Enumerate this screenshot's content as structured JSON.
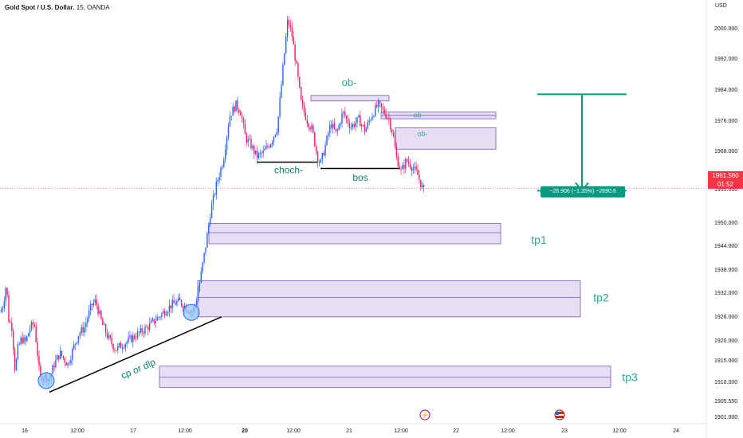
{
  "header": {
    "symbol": "Gold Spot / U.S. Dollar",
    "timeframe": "15",
    "exchange": "OANDA"
  },
  "price_axis": {
    "currency": "USD",
    "current_price": "1961.560",
    "countdown": "01:52",
    "ticks": [
      "2000.000",
      "1992.000",
      "1984.000",
      "1976.000",
      "1968.000",
      "1955.000",
      "1950.000",
      "1944.000",
      "1938.000",
      "1932.000",
      "1926.000",
      "1920.000",
      "1915.000",
      "1910.000",
      "1905.550",
      "1901.000"
    ]
  },
  "time_axis": {
    "ticks": [
      "16",
      "12:00",
      "17",
      "12:00",
      "20",
      "12:00",
      "21",
      "12:00",
      "22",
      "12:00",
      "23",
      "12:00",
      "24"
    ]
  },
  "colors": {
    "up": "#2962ff",
    "down": "#e91e63",
    "zone_fill": "#d1c4e9",
    "zone_border": "#7e57c2",
    "accent": "#089981",
    "annotation_text": "#26a69a"
  },
  "chart_data": {
    "type": "candlestick",
    "y_range": [
      1898,
      2012
    ],
    "price_path": [
      {
        "t": 0,
        "p": 1928
      },
      {
        "t": 4,
        "p": 1930
      },
      {
        "t": 8,
        "p": 1936
      },
      {
        "t": 11,
        "p": 1926
      },
      {
        "t": 15,
        "p": 1924
      },
      {
        "t": 19,
        "p": 1912
      },
      {
        "t": 22,
        "p": 1918
      },
      {
        "t": 27,
        "p": 1921
      },
      {
        "t": 32,
        "p": 1920
      },
      {
        "t": 38,
        "p": 1924
      },
      {
        "t": 43,
        "p": 1925
      },
      {
        "t": 48,
        "p": 1915
      },
      {
        "t": 50,
        "p": 1910
      },
      {
        "t": 55,
        "p": 1911
      },
      {
        "t": 62,
        "p": 1910
      },
      {
        "t": 68,
        "p": 1914
      },
      {
        "t": 75,
        "p": 1917
      },
      {
        "t": 85,
        "p": 1914
      },
      {
        "t": 98,
        "p": 1922
      },
      {
        "t": 106,
        "p": 1924
      },
      {
        "t": 115,
        "p": 1930
      },
      {
        "t": 120,
        "p": 1931
      },
      {
        "t": 128,
        "p": 1925
      },
      {
        "t": 136,
        "p": 1921
      },
      {
        "t": 145,
        "p": 1918
      },
      {
        "t": 158,
        "p": 1920
      },
      {
        "t": 172,
        "p": 1922
      },
      {
        "t": 185,
        "p": 1924
      },
      {
        "t": 195,
        "p": 1926
      },
      {
        "t": 205,
        "p": 1928
      },
      {
        "t": 215,
        "p": 1930
      },
      {
        "t": 225,
        "p": 1931
      },
      {
        "t": 235,
        "p": 1929
      },
      {
        "t": 242,
        "p": 1928
      },
      {
        "t": 247,
        "p": 1932
      },
      {
        "t": 252,
        "p": 1938
      },
      {
        "t": 258,
        "p": 1946
      },
      {
        "t": 264,
        "p": 1955
      },
      {
        "t": 272,
        "p": 1963
      },
      {
        "t": 280,
        "p": 1969
      },
      {
        "t": 288,
        "p": 1981
      },
      {
        "t": 296,
        "p": 1984
      },
      {
        "t": 302,
        "p": 1982
      },
      {
        "t": 308,
        "p": 1975
      },
      {
        "t": 315,
        "p": 1973
      },
      {
        "t": 322,
        "p": 1970
      },
      {
        "t": 330,
        "p": 1971
      },
      {
        "t": 340,
        "p": 1974
      },
      {
        "t": 348,
        "p": 1978
      },
      {
        "t": 355,
        "p": 1994
      },
      {
        "t": 361,
        "p": 2007
      },
      {
        "t": 366,
        "p": 2003
      },
      {
        "t": 372,
        "p": 1994
      },
      {
        "t": 378,
        "p": 1984
      },
      {
        "t": 385,
        "p": 1980
      },
      {
        "t": 392,
        "p": 1977
      },
      {
        "t": 398,
        "p": 1970
      },
      {
        "t": 402,
        "p": 1968
      },
      {
        "t": 407,
        "p": 1972
      },
      {
        "t": 415,
        "p": 1979
      },
      {
        "t": 422,
        "p": 1976
      },
      {
        "t": 430,
        "p": 1982
      },
      {
        "t": 440,
        "p": 1978
      },
      {
        "t": 450,
        "p": 1980
      },
      {
        "t": 458,
        "p": 1977
      },
      {
        "t": 466,
        "p": 1981
      },
      {
        "t": 474,
        "p": 1984
      },
      {
        "t": 482,
        "p": 1982
      },
      {
        "t": 488,
        "p": 1980
      },
      {
        "t": 493,
        "p": 1976
      },
      {
        "t": 497,
        "p": 1970
      },
      {
        "t": 503,
        "p": 1966
      },
      {
        "t": 510,
        "p": 1969
      },
      {
        "t": 518,
        "p": 1967
      },
      {
        "t": 524,
        "p": 1965
      },
      {
        "t": 529,
        "p": 1962
      },
      {
        "t": 533,
        "p": 1960
      }
    ],
    "zones": [
      {
        "label": "ob-",
        "t0": 390,
        "t1": 488,
        "top": 1986.5,
        "bottom": 1985.0,
        "mid": null,
        "label_t": 438,
        "label_p": 1989
      },
      {
        "label": "ob-",
        "t0": 478,
        "t1": 622,
        "top": 1982.0,
        "bottom": 1980.2,
        "mid": 1981.1,
        "label_t": 525,
        "label_p": 1980.6
      },
      {
        "label": "ob-",
        "t0": 496,
        "t1": 622,
        "top": 1977.8,
        "bottom": 1972.0,
        "mid": null,
        "label_t": 530,
        "label_p": 1975.5
      },
      {
        "label": "tp1",
        "t0": 262,
        "t1": 628,
        "top": 1952.0,
        "bottom": 1946.5,
        "mid": 1949.5,
        "label_t": 676,
        "label_p": 1946.5
      },
      {
        "label": "tp2",
        "t0": 248,
        "t1": 728,
        "top": 1936.5,
        "bottom": 1926.8,
        "mid": 1932.0,
        "label_t": 754,
        "label_p": 1931
      },
      {
        "label": "tp3",
        "t0": 200,
        "t1": 766,
        "top": 1913.5,
        "bottom": 1907.8,
        "mid": 1910.5,
        "label_t": 790,
        "label_p": 1909.5
      }
    ],
    "levels": [
      {
        "label": "choch-",
        "t0": 322,
        "t1": 398,
        "p": 1968.5,
        "label_t": 362,
        "label_p": 1965.5
      },
      {
        "label": "bos",
        "t0": 402,
        "t1": 502,
        "p": 1966.8,
        "label_t": 452,
        "label_p": 1963.5
      }
    ],
    "trendline": {
      "label": "cp  or  dlp",
      "t0": 62,
      "p0": 1906.5,
      "t1": 278,
      "p1": 1926.8,
      "label_t": 175,
      "label_p": 1912
    },
    "circles": [
      {
        "t": 58,
        "p": 1909.6
      },
      {
        "t": 240,
        "p": 1928.0
      }
    ],
    "measure": {
      "t0": 674,
      "t1": 786,
      "t_mid": 730,
      "p0": 1986.8,
      "p1": 1960.8,
      "label": "−26.906 (−1.35%) −2690.6"
    }
  }
}
